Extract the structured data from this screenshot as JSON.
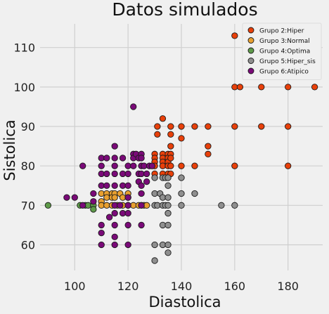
{
  "chart_data": {
    "type": "scatter",
    "title": "Datos simulados",
    "xlabel": "Diastolica",
    "ylabel": "Sistolica",
    "xlim": [
      87,
      193
    ],
    "ylim": [
      53.5,
      116
    ],
    "xticks": [
      100,
      120,
      140,
      160,
      180
    ],
    "yticks": [
      60,
      70,
      80,
      90,
      100,
      110
    ],
    "grid": true,
    "legend_position": "top-right",
    "series": [
      {
        "name": "Grupo 2:Hiper",
        "color": "#e8400a",
        "points": [
          [
            130,
            83
          ],
          [
            130,
            82
          ],
          [
            130,
            81
          ],
          [
            130,
            80
          ],
          [
            130,
            78
          ],
          [
            131,
            90
          ],
          [
            131,
            88
          ],
          [
            133,
            92
          ],
          [
            133,
            83
          ],
          [
            133,
            82
          ],
          [
            133,
            81
          ],
          [
            133,
            80
          ],
          [
            133,
            78
          ],
          [
            135,
            83
          ],
          [
            135,
            82
          ],
          [
            135,
            81
          ],
          [
            135,
            80
          ],
          [
            135,
            78
          ],
          [
            136,
            90
          ],
          [
            136,
            88
          ],
          [
            136,
            85
          ],
          [
            136,
            83
          ],
          [
            136,
            82
          ],
          [
            136,
            80
          ],
          [
            136,
            78
          ],
          [
            140,
            90
          ],
          [
            140,
            87
          ],
          [
            140,
            80
          ],
          [
            145,
            90
          ],
          [
            145,
            80
          ],
          [
            150,
            90
          ],
          [
            150,
            85
          ],
          [
            150,
            83
          ],
          [
            160,
            113
          ],
          [
            160,
            100
          ],
          [
            160,
            90
          ],
          [
            160,
            80
          ],
          [
            162,
            100
          ],
          [
            170,
            100
          ],
          [
            170,
            90
          ],
          [
            180,
            100
          ],
          [
            180,
            90
          ],
          [
            180,
            80
          ],
          [
            190,
            100
          ]
        ]
      },
      {
        "name": "Grupo 3:Normal",
        "color": "#e8a030",
        "points": [
          [
            110,
            73
          ],
          [
            110,
            71
          ],
          [
            110,
            70
          ],
          [
            112,
            73
          ],
          [
            112,
            72
          ],
          [
            112,
            70
          ],
          [
            114,
            73
          ],
          [
            114,
            72
          ],
          [
            114,
            70
          ],
          [
            115,
            73
          ],
          [
            115,
            72
          ],
          [
            116,
            70
          ],
          [
            117,
            73
          ],
          [
            118,
            72
          ],
          [
            118,
            70
          ],
          [
            120,
            73
          ],
          [
            120,
            72
          ],
          [
            120,
            70
          ],
          [
            122,
            70
          ],
          [
            124,
            70
          ],
          [
            125,
            70
          ],
          [
            126,
            70
          ],
          [
            127,
            70
          ]
        ]
      },
      {
        "name": "Grupo 4:Optima",
        "color": "#5e9a49",
        "points": [
          [
            90,
            70
          ],
          [
            102,
            70
          ],
          [
            104,
            70
          ],
          [
            105,
            70
          ],
          [
            107,
            70
          ],
          [
            107,
            69
          ]
        ]
      },
      {
        "name": "Grupo 5:Hiper_sis",
        "color": "#8f8f8f",
        "points": [
          [
            130,
            77
          ],
          [
            130,
            73
          ],
          [
            130,
            70
          ],
          [
            130,
            60
          ],
          [
            130,
            56
          ],
          [
            131,
            70
          ],
          [
            132,
            73
          ],
          [
            133,
            77
          ],
          [
            133,
            72
          ],
          [
            133,
            70
          ],
          [
            133,
            65
          ],
          [
            133,
            60
          ],
          [
            134,
            77
          ],
          [
            134,
            70
          ],
          [
            135,
            77
          ],
          [
            135,
            75
          ],
          [
            135,
            72
          ],
          [
            135,
            70
          ],
          [
            135,
            68
          ],
          [
            135,
            65
          ],
          [
            135,
            60
          ],
          [
            135,
            58
          ],
          [
            140,
            77
          ],
          [
            140,
            73
          ],
          [
            140,
            70
          ],
          [
            145,
            73
          ],
          [
            155,
            70
          ],
          [
            160,
            70
          ]
        ]
      },
      {
        "name": "Grupo 6:Atipico",
        "color": "#7a0a78",
        "points": [
          [
            97,
            72
          ],
          [
            100,
            72
          ],
          [
            103,
            80
          ],
          [
            103,
            70
          ],
          [
            107,
            73
          ],
          [
            107,
            71
          ],
          [
            110,
            82
          ],
          [
            110,
            80
          ],
          [
            110,
            78
          ],
          [
            110,
            75
          ],
          [
            110,
            65
          ],
          [
            110,
            63
          ],
          [
            110,
            60
          ],
          [
            112,
            82
          ],
          [
            112,
            78
          ],
          [
            112,
            75
          ],
          [
            113,
            67
          ],
          [
            115,
            85
          ],
          [
            115,
            82
          ],
          [
            115,
            80
          ],
          [
            115,
            78
          ],
          [
            115,
            75
          ],
          [
            115,
            70
          ],
          [
            115,
            68
          ],
          [
            115,
            65
          ],
          [
            115,
            62
          ],
          [
            115,
            60
          ],
          [
            117,
            70
          ],
          [
            118,
            82
          ],
          [
            118,
            78
          ],
          [
            118,
            75
          ],
          [
            118,
            68
          ],
          [
            120,
            80
          ],
          [
            120,
            78
          ],
          [
            120,
            75
          ],
          [
            120,
            72
          ],
          [
            120,
            70
          ],
          [
            120,
            68
          ],
          [
            120,
            65
          ],
          [
            120,
            60
          ],
          [
            122,
            95
          ],
          [
            122,
            83
          ],
          [
            122,
            82
          ],
          [
            122,
            80
          ],
          [
            123,
            83
          ],
          [
            124,
            82
          ],
          [
            124,
            78
          ],
          [
            124,
            76
          ],
          [
            125,
            83
          ],
          [
            125,
            82
          ],
          [
            125,
            80
          ],
          [
            125,
            78
          ],
          [
            125,
            75
          ],
          [
            125,
            73
          ],
          [
            125,
            70
          ],
          [
            125,
            65
          ],
          [
            126,
            80
          ],
          [
            127,
            78
          ],
          [
            127,
            76
          ],
          [
            128,
            80
          ],
          [
            129,
            80
          ]
        ]
      }
    ]
  }
}
